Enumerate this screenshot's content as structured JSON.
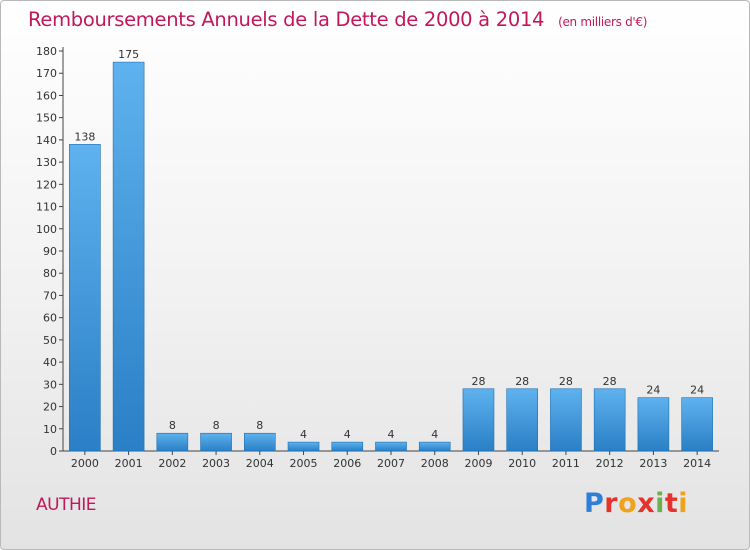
{
  "chart_data": {
    "type": "bar",
    "title": "Remboursements Annuels de la Dette de 2000 à 2014",
    "subtitle": "(en milliers d'€)",
    "categories": [
      "2000",
      "2001",
      "2002",
      "2003",
      "2004",
      "2005",
      "2006",
      "2007",
      "2008",
      "2009",
      "2010",
      "2011",
      "2012",
      "2013",
      "2014"
    ],
    "values": [
      138,
      175,
      8,
      8,
      8,
      4,
      4,
      4,
      4,
      28,
      28,
      28,
      28,
      24,
      24
    ],
    "ylim": [
      0,
      180
    ],
    "yticks": [
      0,
      10,
      20,
      30,
      40,
      50,
      60,
      70,
      80,
      90,
      100,
      110,
      120,
      130,
      140,
      150,
      160,
      170,
      180
    ],
    "grid": false,
    "bar_color": "#3f9be0",
    "bar_color_dark": "#1f74b8"
  },
  "footer": {
    "commune": "AUTHIE",
    "logo": "Proxiti"
  }
}
